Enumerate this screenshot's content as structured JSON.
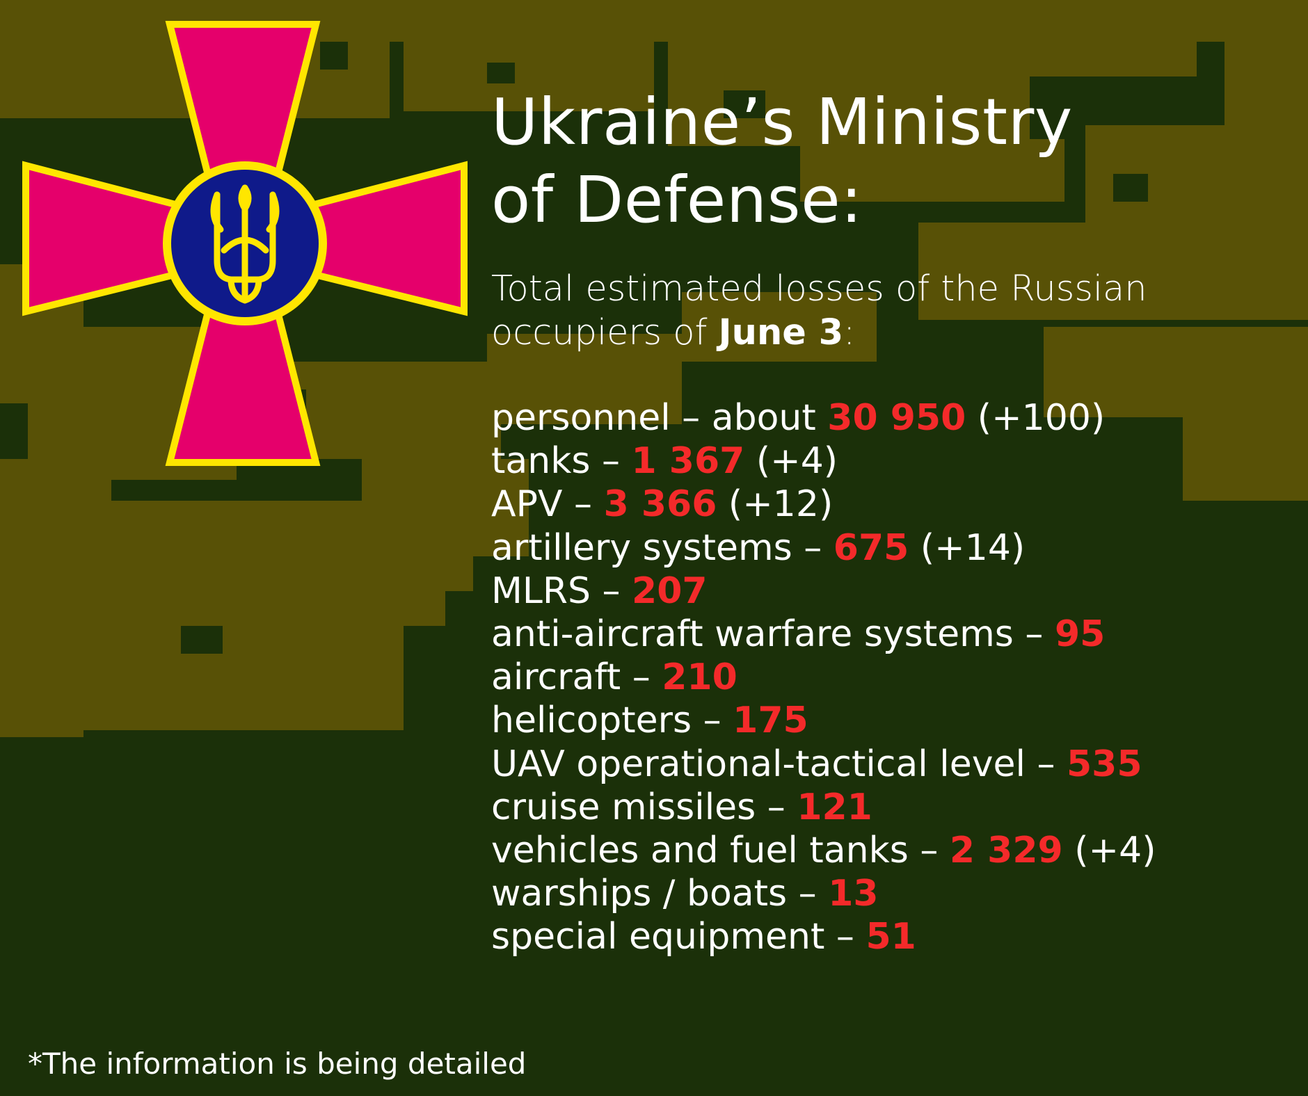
{
  "colors": {
    "background": "#1b3009",
    "camo_light": "#585106",
    "value_red": "#f42a2a",
    "text": "#ffffff",
    "cross_pink": "#e5006b",
    "emblem_gold": "#ffe600",
    "emblem_blue": "#0f1a8a"
  },
  "title": {
    "line1": "Ukraine’s Ministry",
    "line2": "of Defense:"
  },
  "subtitle": {
    "line1": "Total estimated losses of the Russian",
    "line2_prefix": "occupiers of ",
    "date": "June 3",
    "line2_suffix": ":"
  },
  "stats": [
    {
      "label": "personnel – about ",
      "value": "30 950",
      "change": " (+100)"
    },
    {
      "label": "tanks – ",
      "value": "1 367",
      "change": " (+4)"
    },
    {
      "label": "APV  – ",
      "value": "3 366",
      "change": " (+12)"
    },
    {
      "label": "artillery systems – ",
      "value": "675",
      "change": " (+14)"
    },
    {
      "label": "MLRS – ",
      "value": "207",
      "change": ""
    },
    {
      "label": "anti-aircraft warfare systems – ",
      "value": "95",
      "change": ""
    },
    {
      "label": "aircraft – ",
      "value": "210",
      "change": ""
    },
    {
      "label": "helicopters – ",
      "value": "175",
      "change": ""
    },
    {
      "label": "UAV operational-tactical level – ",
      "value": "535",
      "change": ""
    },
    {
      "label": "cruise missiles – ",
      "value": "121",
      "change": ""
    },
    {
      "label": "vehicles and fuel tanks – ",
      "value": "2 329",
      "change": " (+4)"
    },
    {
      "label": "warships / boats  – ",
      "value": "13",
      "change": ""
    },
    {
      "label": "special equipment – ",
      "value": "51",
      "change": ""
    }
  ],
  "footnote": "*The information is being detailed",
  "emblem_icon": "ukraine-armed-forces-cross-emblem"
}
